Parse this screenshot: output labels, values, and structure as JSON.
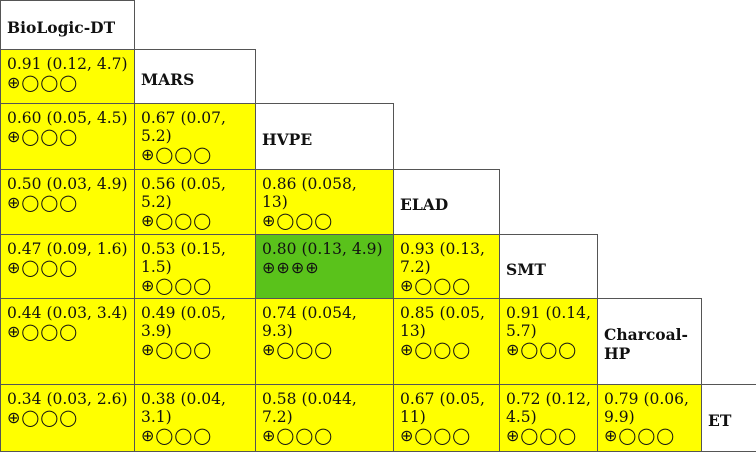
{
  "treatments": [
    "BioLogic-DT",
    "MARS",
    "HVPE",
    "ELAD",
    "SMT",
    "Charcoal-HP",
    "ET"
  ],
  "colors": {
    "low_certainty": "#ffff00",
    "high_certainty": "#5ac21b",
    "treatment_header": "#ffffff",
    "border": "#555555"
  },
  "comparisons": [
    {
      "row": 1,
      "col": 0,
      "text": "0.91 (0.12, 4.7)",
      "certainty": "⊕◯◯◯",
      "level": "low"
    },
    {
      "row": 2,
      "col": 0,
      "text": "0.60 (0.05, 4.5)",
      "certainty": "⊕◯◯◯",
      "level": "low"
    },
    {
      "row": 2,
      "col": 1,
      "text": "0.67 (0.07, 5.2)",
      "certainty": "⊕◯◯◯",
      "level": "low"
    },
    {
      "row": 3,
      "col": 0,
      "text": "0.50 (0.03, 4.9)",
      "certainty": "⊕◯◯◯",
      "level": "low"
    },
    {
      "row": 3,
      "col": 1,
      "text": "0.56 (0.05, 5.2)",
      "certainty": "⊕◯◯◯",
      "level": "low"
    },
    {
      "row": 3,
      "col": 2,
      "text": "0.86 (0.058, 13)",
      "certainty": "⊕◯◯◯",
      "level": "low"
    },
    {
      "row": 4,
      "col": 0,
      "text": "0.47 (0.09, 1.6)",
      "certainty": "⊕◯◯◯",
      "level": "low"
    },
    {
      "row": 4,
      "col": 1,
      "text": "0.53 (0.15, 1.5)",
      "certainty": "⊕◯◯◯",
      "level": "low"
    },
    {
      "row": 4,
      "col": 2,
      "text": "0.80 (0.13, 4.9)",
      "certainty": "⊕⊕⊕⊕",
      "level": "high"
    },
    {
      "row": 4,
      "col": 3,
      "text": "0.93 (0.13, 7.2)",
      "certainty": "⊕◯◯◯",
      "level": "low"
    },
    {
      "row": 5,
      "col": 0,
      "text": "0.44 (0.03, 3.4)",
      "certainty": "⊕◯◯◯",
      "level": "low"
    },
    {
      "row": 5,
      "col": 1,
      "text": "0.49 (0.05, 3.9)",
      "certainty": "⊕◯◯◯",
      "level": "low"
    },
    {
      "row": 5,
      "col": 2,
      "text": "0.74 (0.054, 9.3)",
      "certainty": "⊕◯◯◯",
      "level": "low"
    },
    {
      "row": 5,
      "col": 3,
      "text": "0.85 (0.05, 13)",
      "certainty": "⊕◯◯◯",
      "level": "low"
    },
    {
      "row": 5,
      "col": 4,
      "text": "0.91 (0.14, 5.7)",
      "certainty": "⊕◯◯◯",
      "level": "low"
    },
    {
      "row": 6,
      "col": 0,
      "text": "0.34 (0.03, 2.6)",
      "certainty": "⊕◯◯◯",
      "level": "low"
    },
    {
      "row": 6,
      "col": 1,
      "text": "0.38 (0.04, 3.1)",
      "certainty": "⊕◯◯◯",
      "level": "low"
    },
    {
      "row": 6,
      "col": 2,
      "text": "0.58 (0.044, 7.2)",
      "certainty": "⊕◯◯◯",
      "level": "low"
    },
    {
      "row": 6,
      "col": 3,
      "text": "0.67 (0.05, 11)",
      "certainty": "⊕◯◯◯",
      "level": "low"
    },
    {
      "row": 6,
      "col": 4,
      "text": "0.72 (0.12, 4.5)",
      "certainty": "⊕◯◯◯",
      "level": "low"
    },
    {
      "row": 6,
      "col": 5,
      "text": "0.79 (0.06, 9.9)",
      "certainty": "⊕◯◯◯",
      "level": "low"
    }
  ]
}
